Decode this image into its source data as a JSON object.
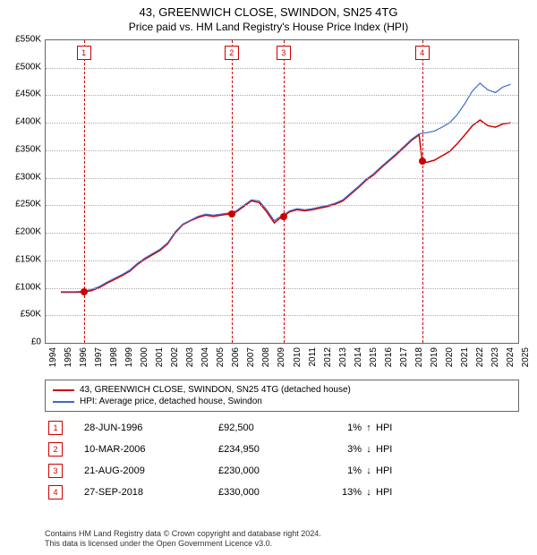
{
  "title_line1": "43, GREENWICH CLOSE, SWINDON, SN25 4TG",
  "title_line2": "Price paid vs. HM Land Registry's House Price Index (HPI)",
  "chart": {
    "type": "line",
    "background_color": "#ffffff",
    "grid_color": "#aaaaaa",
    "border_color": "#666666",
    "x_min": 1994,
    "x_max": 2025,
    "x_tick_step": 1,
    "y_min": 0,
    "y_max": 550000,
    "y_tick_step": 50000,
    "y_prefix": "£",
    "y_suffix": "K",
    "y_divisor": 1000,
    "label_fontsize": 10,
    "series": [
      {
        "name": "property",
        "label": "43, GREENWICH CLOSE, SWINDON, SN25 4TG (detached house)",
        "color": "#cc0000",
        "line_width": 1.5,
        "points": [
          [
            1995.0,
            92000
          ],
          [
            1996.0,
            92000
          ],
          [
            1996.5,
            92500
          ],
          [
            1997.0,
            95000
          ],
          [
            1997.5,
            100000
          ],
          [
            1998.0,
            108000
          ],
          [
            1998.5,
            115000
          ],
          [
            1999.0,
            122000
          ],
          [
            1999.5,
            130000
          ],
          [
            2000.0,
            142000
          ],
          [
            2000.5,
            152000
          ],
          [
            2001.0,
            160000
          ],
          [
            2001.5,
            168000
          ],
          [
            2002.0,
            180000
          ],
          [
            2002.5,
            200000
          ],
          [
            2003.0,
            215000
          ],
          [
            2003.5,
            222000
          ],
          [
            2004.0,
            228000
          ],
          [
            2004.5,
            232000
          ],
          [
            2005.0,
            230000
          ],
          [
            2005.5,
            232000
          ],
          [
            2006.2,
            234950
          ],
          [
            2006.5,
            238000
          ],
          [
            2007.0,
            248000
          ],
          [
            2007.5,
            258000
          ],
          [
            2008.0,
            255000
          ],
          [
            2008.5,
            238000
          ],
          [
            2009.0,
            218000
          ],
          [
            2009.3,
            225000
          ],
          [
            2009.6,
            230000
          ],
          [
            2010.0,
            238000
          ],
          [
            2010.5,
            242000
          ],
          [
            2011.0,
            240000
          ],
          [
            2011.5,
            242000
          ],
          [
            2012.0,
            245000
          ],
          [
            2012.5,
            248000
          ],
          [
            2013.0,
            252000
          ],
          [
            2013.5,
            258000
          ],
          [
            2014.0,
            270000
          ],
          [
            2014.5,
            282000
          ],
          [
            2015.0,
            295000
          ],
          [
            2015.5,
            305000
          ],
          [
            2016.0,
            318000
          ],
          [
            2016.5,
            330000
          ],
          [
            2017.0,
            342000
          ],
          [
            2017.5,
            355000
          ],
          [
            2018.0,
            368000
          ],
          [
            2018.5,
            378000
          ],
          [
            2018.7,
            330000
          ],
          [
            2019.0,
            328000
          ],
          [
            2019.5,
            332000
          ],
          [
            2020.0,
            340000
          ],
          [
            2020.5,
            348000
          ],
          [
            2021.0,
            362000
          ],
          [
            2021.5,
            378000
          ],
          [
            2022.0,
            395000
          ],
          [
            2022.5,
            405000
          ],
          [
            2023.0,
            395000
          ],
          [
            2023.5,
            392000
          ],
          [
            2024.0,
            398000
          ],
          [
            2024.5,
            400000
          ]
        ]
      },
      {
        "name": "hpi",
        "label": "HPI: Average price, detached house, Swindon",
        "color": "#4169cc",
        "line_width": 1.2,
        "points": [
          [
            1995.0,
            93000
          ],
          [
            1996.0,
            93000
          ],
          [
            1996.5,
            94000
          ],
          [
            1997.0,
            97000
          ],
          [
            1997.5,
            102000
          ],
          [
            1998.0,
            110000
          ],
          [
            1998.5,
            117000
          ],
          [
            1999.0,
            124000
          ],
          [
            1999.5,
            132000
          ],
          [
            2000.0,
            144000
          ],
          [
            2000.5,
            154000
          ],
          [
            2001.0,
            162000
          ],
          [
            2001.5,
            170000
          ],
          [
            2002.0,
            182000
          ],
          [
            2002.5,
            202000
          ],
          [
            2003.0,
            216000
          ],
          [
            2003.5,
            223000
          ],
          [
            2004.0,
            230000
          ],
          [
            2004.5,
            234000
          ],
          [
            2005.0,
            232000
          ],
          [
            2005.5,
            234000
          ],
          [
            2006.2,
            237000
          ],
          [
            2006.5,
            240000
          ],
          [
            2007.0,
            250000
          ],
          [
            2007.5,
            260000
          ],
          [
            2008.0,
            258000
          ],
          [
            2008.5,
            242000
          ],
          [
            2009.0,
            222000
          ],
          [
            2009.3,
            228000
          ],
          [
            2009.6,
            232000
          ],
          [
            2010.0,
            240000
          ],
          [
            2010.5,
            244000
          ],
          [
            2011.0,
            242000
          ],
          [
            2011.5,
            244000
          ],
          [
            2012.0,
            247000
          ],
          [
            2012.5,
            250000
          ],
          [
            2013.0,
            254000
          ],
          [
            2013.5,
            260000
          ],
          [
            2014.0,
            272000
          ],
          [
            2014.5,
            284000
          ],
          [
            2015.0,
            297000
          ],
          [
            2015.5,
            307000
          ],
          [
            2016.0,
            320000
          ],
          [
            2016.5,
            332000
          ],
          [
            2017.0,
            344000
          ],
          [
            2017.5,
            357000
          ],
          [
            2018.0,
            370000
          ],
          [
            2018.5,
            380000
          ],
          [
            2019.0,
            382000
          ],
          [
            2019.5,
            385000
          ],
          [
            2020.0,
            392000
          ],
          [
            2020.5,
            400000
          ],
          [
            2021.0,
            415000
          ],
          [
            2021.5,
            435000
          ],
          [
            2022.0,
            458000
          ],
          [
            2022.5,
            472000
          ],
          [
            2023.0,
            460000
          ],
          [
            2023.5,
            455000
          ],
          [
            2024.0,
            465000
          ],
          [
            2024.5,
            470000
          ]
        ]
      }
    ],
    "markers": [
      {
        "n": "1",
        "x": 1996.5,
        "y": 92500,
        "color": "#cc0000"
      },
      {
        "n": "2",
        "x": 2006.2,
        "y": 234950,
        "color": "#cc0000"
      },
      {
        "n": "3",
        "x": 2009.6,
        "y": 230000,
        "color": "#cc0000"
      },
      {
        "n": "4",
        "x": 2018.7,
        "y": 330000,
        "color": "#cc0000"
      }
    ]
  },
  "legend": {
    "items": [
      {
        "color": "#cc0000",
        "label": "43, GREENWICH CLOSE, SWINDON, SN25 4TG (detached house)"
      },
      {
        "color": "#4169cc",
        "label": "HPI: Average price, detached house, Swindon"
      }
    ]
  },
  "transactions": [
    {
      "n": "1",
      "date": "28-JUN-1996",
      "price": "£92,500",
      "pct": "1%",
      "arrow": "↑",
      "suffix": "HPI"
    },
    {
      "n": "2",
      "date": "10-MAR-2006",
      "price": "£234,950",
      "pct": "3%",
      "arrow": "↓",
      "suffix": "HPI"
    },
    {
      "n": "3",
      "date": "21-AUG-2009",
      "price": "£230,000",
      "pct": "1%",
      "arrow": "↓",
      "suffix": "HPI"
    },
    {
      "n": "4",
      "date": "27-SEP-2018",
      "price": "£330,000",
      "pct": "13%",
      "arrow": "↓",
      "suffix": "HPI"
    }
  ],
  "footer_line1": "Contains HM Land Registry data © Crown copyright and database right 2024.",
  "footer_line2": "This data is licensed under the Open Government Licence v3.0."
}
